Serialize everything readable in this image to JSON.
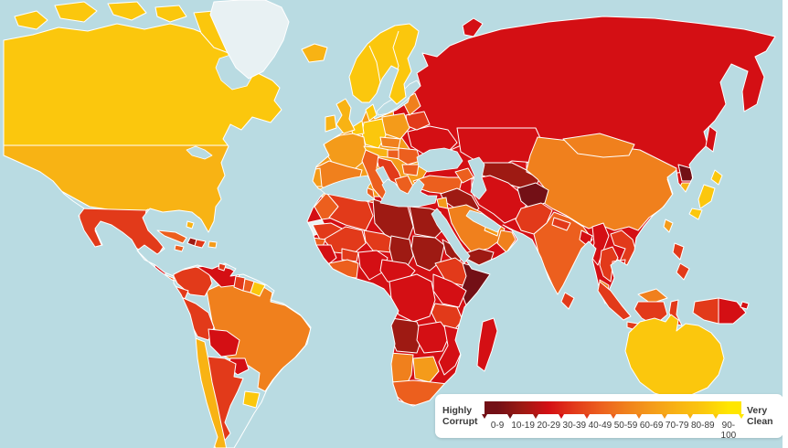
{
  "title": "World corruption perceptions choropleth map",
  "map": {
    "ocean_color": "#b9dbe2",
    "no_data_color": "#e8f1f3",
    "border_color": "#ffffff",
    "scale": [
      {
        "range": "0-9",
        "color": "#731016"
      },
      {
        "range": "10-19",
        "color": "#9e1a13"
      },
      {
        "range": "20-29",
        "color": "#d40f14"
      },
      {
        "range": "30-39",
        "color": "#e23a1a"
      },
      {
        "range": "40-49",
        "color": "#ec5f1e"
      },
      {
        "range": "50-59",
        "color": "#f0801d"
      },
      {
        "range": "60-69",
        "color": "#f49b1a"
      },
      {
        "range": "70-79",
        "color": "#f8b314"
      },
      {
        "range": "80-89",
        "color": "#fbc70d"
      },
      {
        "range": "90-100",
        "color": "#ffe600"
      }
    ],
    "regions": {
      "canada": "80-89",
      "usa": "70-79",
      "mexico": "30-39",
      "greenland": "no-data",
      "guatemala": "20-29",
      "honduras-nicaragua": "20-29",
      "costa-rica-panama": "40-49",
      "cuba": "40-49",
      "haiti": "10-19",
      "dominican-republic": "30-39",
      "jamaica": "40-49",
      "puerto-rico": "60-69",
      "bahamas": "70-79",
      "trinidad": "30-39",
      "colombia": "30-39",
      "venezuela": "20-29",
      "guyana": "30-39",
      "suriname": "40-49",
      "french-guiana": "80-89",
      "ecuador": "30-39",
      "peru": "30-39",
      "brazil": "50-59",
      "bolivia": "20-29",
      "paraguay": "20-29",
      "chile": "70-79",
      "argentina": "30-39",
      "uruguay": "80-89",
      "iceland": "70-79",
      "ireland": "70-79",
      "united-kingdom": "70-79",
      "scandinavia": "80-89",
      "denmark": "80-89",
      "portugal": "60-69",
      "spain": "50-59",
      "france": "60-69",
      "benelux": "80-89",
      "germany": "80-89",
      "switzerland-austria": "70-79",
      "italy": "40-49",
      "czech-slovakia": "50-59",
      "poland": "60-69",
      "hungary": "40-49",
      "balkans": "30-39",
      "romania": "40-49",
      "bulgaria": "40-49",
      "greece": "40-49",
      "baltics": "50-59",
      "belarus": "30-39",
      "ukraine": "20-29",
      "russia": "20-29",
      "europe-base": "60-69",
      "turkey": "40-49",
      "caucasus": "40-49",
      "syria-iraq": "10-19",
      "iran": "20-29",
      "israel-jordan": "60-69",
      "saudi-arabia": "50-59",
      "yemen": "10-19",
      "oman": "50-59",
      "uae-qatar": "60-69",
      "kazakhstan": "20-29",
      "turkmenistan-uzbekistan": "10-19",
      "kyrgyzstan-tajikistan": "20-29",
      "afghanistan": "0-9",
      "pakistan": "30-39",
      "india": "40-49",
      "nepal": "30-39",
      "bangladesh": "20-29",
      "sri-lanka": "30-39",
      "myanmar": "20-29",
      "thailand": "30-39",
      "laos-vietnam": "30-39",
      "cambodia": "20-29",
      "malaysia": "50-59",
      "china": "50-59",
      "mongolia": "50-59",
      "north-korea": "0-9",
      "south-korea": "70-79",
      "japan": "80-89",
      "taiwan": "60-69",
      "sakhalin": "20-29",
      "philippines": "30-39",
      "indonesia": "30-39",
      "papua-new-guinea": "20-29",
      "fiji": "20-29",
      "morocco": "40-49",
      "western-sahara": "no-data",
      "algeria": "30-39",
      "tunisia": "40-49",
      "libya": "10-19",
      "egypt": "10-19",
      "mauritania": "30-39",
      "mali": "30-39",
      "niger": "30-39",
      "chad": "10-19",
      "sudan": "10-19",
      "eritrea": "10-19",
      "ethiopia": "30-39",
      "somalia": "0-9",
      "senegal": "40-49",
      "guinea": "20-29",
      "ivory-coast-ghana": "40-49",
      "burkina-faso": "30-39",
      "nigeria": "20-29",
      "cameroon-car": "20-29",
      "drc": "20-29",
      "uganda-kenya": "20-29",
      "tanzania": "30-39",
      "angola": "10-19",
      "zambia-zimbabwe": "20-29",
      "mozambique": "20-29",
      "namibia": "50-59",
      "botswana": "60-69",
      "south-africa": "40-49",
      "madagascar": "20-29",
      "novaya-zemlya": "20-29",
      "australia": "80-89",
      "continent-base": "20-29"
    }
  },
  "legend": {
    "left_label": "Highly Corrupt",
    "right_label": "Very Clean",
    "ranges": [
      "0-9",
      "10-19",
      "20-29",
      "30-39",
      "40-49",
      "50-59",
      "60-69",
      "70-79",
      "80-89",
      "90-100"
    ]
  }
}
